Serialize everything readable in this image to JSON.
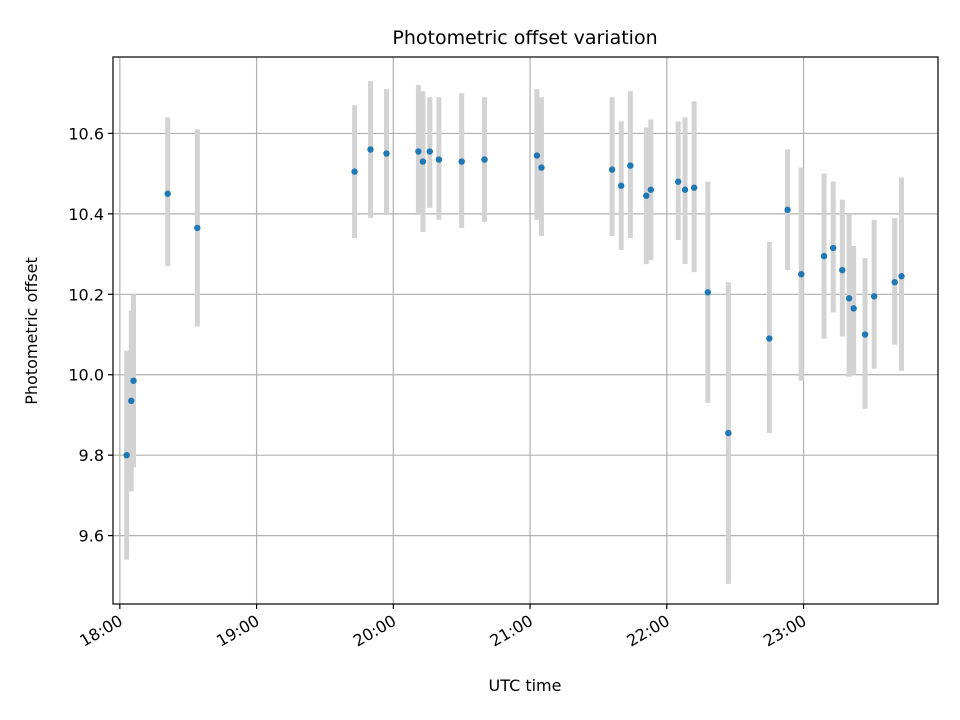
{
  "chart_data": {
    "type": "scatter",
    "title": "Photometric offset variation",
    "xlabel": "UTC time",
    "ylabel": "Photometric offset",
    "x_unit": "UTC time (HH:MM)",
    "xlim": [
      "17:57",
      "23:59"
    ],
    "ylim": [
      9.43,
      10.79
    ],
    "x_ticks": [
      "18:00",
      "19:00",
      "20:00",
      "21:00",
      "22:00",
      "23:00"
    ],
    "y_ticks": [
      9.6,
      9.8,
      10.0,
      10.2,
      10.4,
      10.6
    ],
    "grid": true,
    "legend": "none",
    "colors": {
      "point": "#1f77b4",
      "errorbar": "#d3d3d3",
      "grid": "#b0b0b0"
    },
    "series": [
      {
        "points": [
          {
            "t": "18:03",
            "y": 9.8,
            "lo": 9.54,
            "hi": 10.06
          },
          {
            "t": "18:05",
            "y": 9.935,
            "lo": 9.71,
            "hi": 10.16
          },
          {
            "t": "18:06",
            "y": 9.985,
            "lo": 9.77,
            "hi": 10.2
          },
          {
            "t": "18:21",
            "y": 10.45,
            "lo": 10.27,
            "hi": 10.64
          },
          {
            "t": "18:34",
            "y": 10.365,
            "lo": 10.12,
            "hi": 10.61
          },
          {
            "t": "19:43",
            "y": 10.505,
            "lo": 10.34,
            "hi": 10.67
          },
          {
            "t": "19:50",
            "y": 10.56,
            "lo": 10.39,
            "hi": 10.73
          },
          {
            "t": "19:57",
            "y": 10.55,
            "lo": 10.4,
            "hi": 10.71
          },
          {
            "t": "20:11",
            "y": 10.555,
            "lo": 10.4,
            "hi": 10.72
          },
          {
            "t": "20:13",
            "y": 10.53,
            "lo": 10.355,
            "hi": 10.705
          },
          {
            "t": "20:16",
            "y": 10.555,
            "lo": 10.415,
            "hi": 10.69
          },
          {
            "t": "20:20",
            "y": 10.535,
            "lo": 10.385,
            "hi": 10.69
          },
          {
            "t": "20:30",
            "y": 10.53,
            "lo": 10.365,
            "hi": 10.7
          },
          {
            "t": "20:40",
            "y": 10.535,
            "lo": 10.38,
            "hi": 10.69
          },
          {
            "t": "21:03",
            "y": 10.545,
            "lo": 10.385,
            "hi": 10.71
          },
          {
            "t": "21:05",
            "y": 10.515,
            "lo": 10.345,
            "hi": 10.69
          },
          {
            "t": "21:36",
            "y": 10.51,
            "lo": 10.345,
            "hi": 10.69
          },
          {
            "t": "21:40",
            "y": 10.47,
            "lo": 10.31,
            "hi": 10.63
          },
          {
            "t": "21:44",
            "y": 10.52,
            "lo": 10.34,
            "hi": 10.705
          },
          {
            "t": "21:51",
            "y": 10.445,
            "lo": 10.275,
            "hi": 10.615
          },
          {
            "t": "21:53",
            "y": 10.46,
            "lo": 10.285,
            "hi": 10.635
          },
          {
            "t": "22:05",
            "y": 10.48,
            "lo": 10.335,
            "hi": 10.63
          },
          {
            "t": "22:08",
            "y": 10.46,
            "lo": 10.275,
            "hi": 10.64
          },
          {
            "t": "22:12",
            "y": 10.465,
            "lo": 10.255,
            "hi": 10.68
          },
          {
            "t": "22:18",
            "y": 10.205,
            "lo": 9.93,
            "hi": 10.48
          },
          {
            "t": "22:27",
            "y": 9.855,
            "lo": 9.48,
            "hi": 10.23
          },
          {
            "t": "22:45",
            "y": 10.09,
            "lo": 9.855,
            "hi": 10.33
          },
          {
            "t": "22:53",
            "y": 10.41,
            "lo": 10.26,
            "hi": 10.56
          },
          {
            "t": "22:59",
            "y": 10.25,
            "lo": 9.985,
            "hi": 10.515
          },
          {
            "t": "23:09",
            "y": 10.295,
            "lo": 10.09,
            "hi": 10.5
          },
          {
            "t": "23:13",
            "y": 10.315,
            "lo": 10.155,
            "hi": 10.48
          },
          {
            "t": "23:17",
            "y": 10.26,
            "lo": 10.095,
            "hi": 10.435
          },
          {
            "t": "23:20",
            "y": 10.19,
            "lo": 9.995,
            "hi": 10.4
          },
          {
            "t": "23:22",
            "y": 10.165,
            "lo": 10.0,
            "hi": 10.32
          },
          {
            "t": "23:27",
            "y": 10.1,
            "lo": 9.915,
            "hi": 10.29
          },
          {
            "t": "23:31",
            "y": 10.195,
            "lo": 10.015,
            "hi": 10.385
          },
          {
            "t": "23:40",
            "y": 10.23,
            "lo": 10.075,
            "hi": 10.39
          },
          {
            "t": "23:43",
            "y": 10.245,
            "lo": 10.01,
            "hi": 10.49
          }
        ]
      }
    ]
  }
}
